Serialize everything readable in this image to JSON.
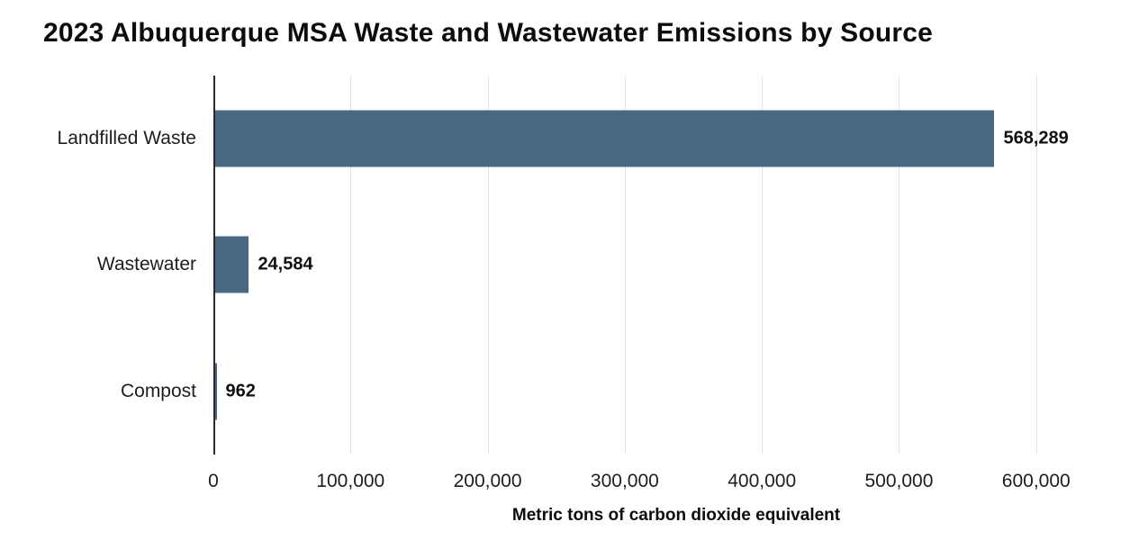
{
  "chart_data": {
    "type": "bar",
    "orientation": "horizontal",
    "title": "2023 Albuquerque MSA Waste and Wastewater Emissions by Source",
    "categories": [
      "Landfilled Waste",
      "Wastewater",
      "Compost"
    ],
    "values": [
      568289,
      24584,
      962
    ],
    "value_labels": [
      "568,289",
      "24,584",
      "962"
    ],
    "xlabel": "Metric tons of carbon dioxide equivalent",
    "ylabel": "",
    "xlim": [
      0,
      675000
    ],
    "xticks": [
      0,
      100000,
      200000,
      300000,
      400000,
      500000,
      600000
    ],
    "xtick_labels": [
      "0",
      "100,000",
      "200,000",
      "300,000",
      "400,000",
      "500,000",
      "600,000"
    ],
    "bar_color": "#4A6883",
    "gridline_color": "#E2E2E2",
    "axis_line_color": "#2A2A2A",
    "grid": true,
    "legend": "none"
  }
}
